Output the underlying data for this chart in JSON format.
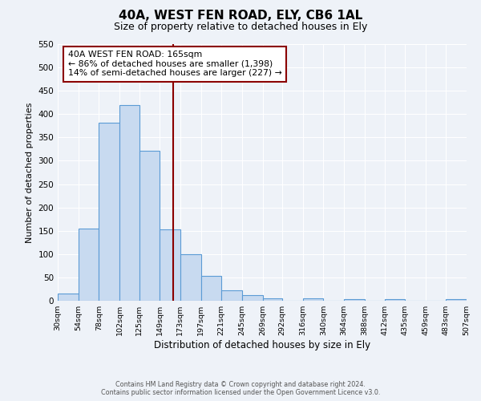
{
  "title": "40A, WEST FEN ROAD, ELY, CB6 1AL",
  "subtitle": "Size of property relative to detached houses in Ely",
  "xlabel": "Distribution of detached houses by size in Ely",
  "ylabel": "Number of detached properties",
  "bar_values": [
    15,
    155,
    382,
    420,
    322,
    153,
    100,
    54,
    22,
    12,
    5,
    0,
    5,
    0,
    3,
    0,
    3,
    0,
    0,
    3
  ],
  "bar_edges": [
    30,
    54,
    78,
    102,
    125,
    149,
    173,
    197,
    221,
    245,
    269,
    292,
    316,
    340,
    364,
    388,
    412,
    435,
    459,
    483,
    507
  ],
  "tick_labels": [
    "30sqm",
    "54sqm",
    "78sqm",
    "102sqm",
    "125sqm",
    "149sqm",
    "173sqm",
    "197sqm",
    "221sqm",
    "245sqm",
    "269sqm",
    "292sqm",
    "316sqm",
    "340sqm",
    "364sqm",
    "388sqm",
    "412sqm",
    "435sqm",
    "459sqm",
    "483sqm",
    "507sqm"
  ],
  "bar_color": "#c8daf0",
  "bar_edge_color": "#5b9bd5",
  "property_line_x": 165,
  "property_line_color": "#8b0000",
  "ylim": [
    0,
    550
  ],
  "yticks": [
    0,
    50,
    100,
    150,
    200,
    250,
    300,
    350,
    400,
    450,
    500,
    550
  ],
  "annotation_title": "40A WEST FEN ROAD: 165sqm",
  "annotation_line1": "← 86% of detached houses are smaller (1,398)",
  "annotation_line2": "14% of semi-detached houses are larger (227) →",
  "annotation_box_color": "#8b0000",
  "footer1": "Contains HM Land Registry data © Crown copyright and database right 2024.",
  "footer2": "Contains public sector information licensed under the Open Government Licence v3.0.",
  "bg_color": "#eef2f8",
  "grid_color": "#ffffff",
  "fig_width": 6.0,
  "fig_height": 5.0,
  "dpi": 100
}
